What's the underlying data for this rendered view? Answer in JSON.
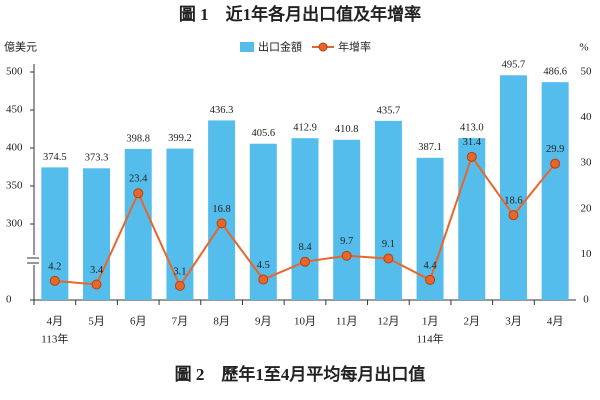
{
  "chart_data": {
    "type": "bar_line",
    "title": "圖 1　近1年各月出口值及年增率",
    "caption": "圖 2　歷年1至4月平均每月出口值",
    "y_label": "億美元",
    "y2_label": "%",
    "categories": [
      "4月",
      "5月",
      "6月",
      "7月",
      "8月",
      "9月",
      "10月",
      "11月",
      "12月",
      "1月",
      "2月",
      "3月",
      "4月"
    ],
    "category_years": [
      "113年",
      null,
      null,
      null,
      null,
      null,
      null,
      null,
      null,
      "114年",
      null,
      null,
      null
    ],
    "series": [
      {
        "name": "出口金額",
        "type": "bar",
        "color": "#55bdec",
        "values": [
          374.5,
          373.3,
          398.8,
          399.2,
          436.3,
          405.6,
          412.9,
          410.8,
          435.7,
          387.1,
          413.0,
          495.7,
          486.6
        ],
        "value_labels": [
          "374.5",
          "373.3",
          "398.8",
          "399.2",
          "436.3",
          "405.6",
          "412.9",
          "410.8",
          "435.7",
          "387.1",
          "413.0",
          "495.7",
          "486.6"
        ]
      },
      {
        "name": "年增率",
        "type": "line",
        "axis": "y2",
        "color": "#e8662a",
        "values": [
          4.2,
          3.4,
          23.4,
          3.1,
          16.8,
          4.5,
          8.4,
          9.7,
          9.1,
          4.4,
          31.4,
          18.6,
          29.9
        ]
      }
    ],
    "ylim": [
      0,
      500
    ],
    "y_axis_break": 300,
    "yticks": [
      0,
      300,
      350,
      400,
      450,
      500
    ],
    "y2lim": [
      0,
      50
    ],
    "y2ticks": [
      0,
      10,
      20,
      30,
      40,
      50
    ],
    "legend": "top"
  }
}
